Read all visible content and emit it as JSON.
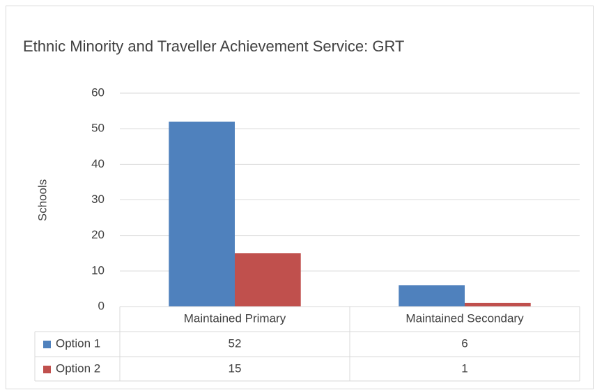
{
  "chart_data": {
    "type": "bar",
    "title": "Ethnic Minority and Traveller Achievement Service: GRT",
    "y_label": "Schools",
    "categories": [
      "Maintained Primary",
      "Maintained Secondary"
    ],
    "series": [
      {
        "name": "Option 1",
        "color": "#4f81bd",
        "values": [
          52,
          6
        ]
      },
      {
        "name": "Option 2",
        "color": "#c0504d",
        "values": [
          15,
          1
        ]
      }
    ],
    "ylim": [
      0,
      60
    ],
    "yticks": [
      0,
      10,
      20,
      30,
      40,
      50,
      60
    ],
    "grid": true,
    "data_table": true
  }
}
